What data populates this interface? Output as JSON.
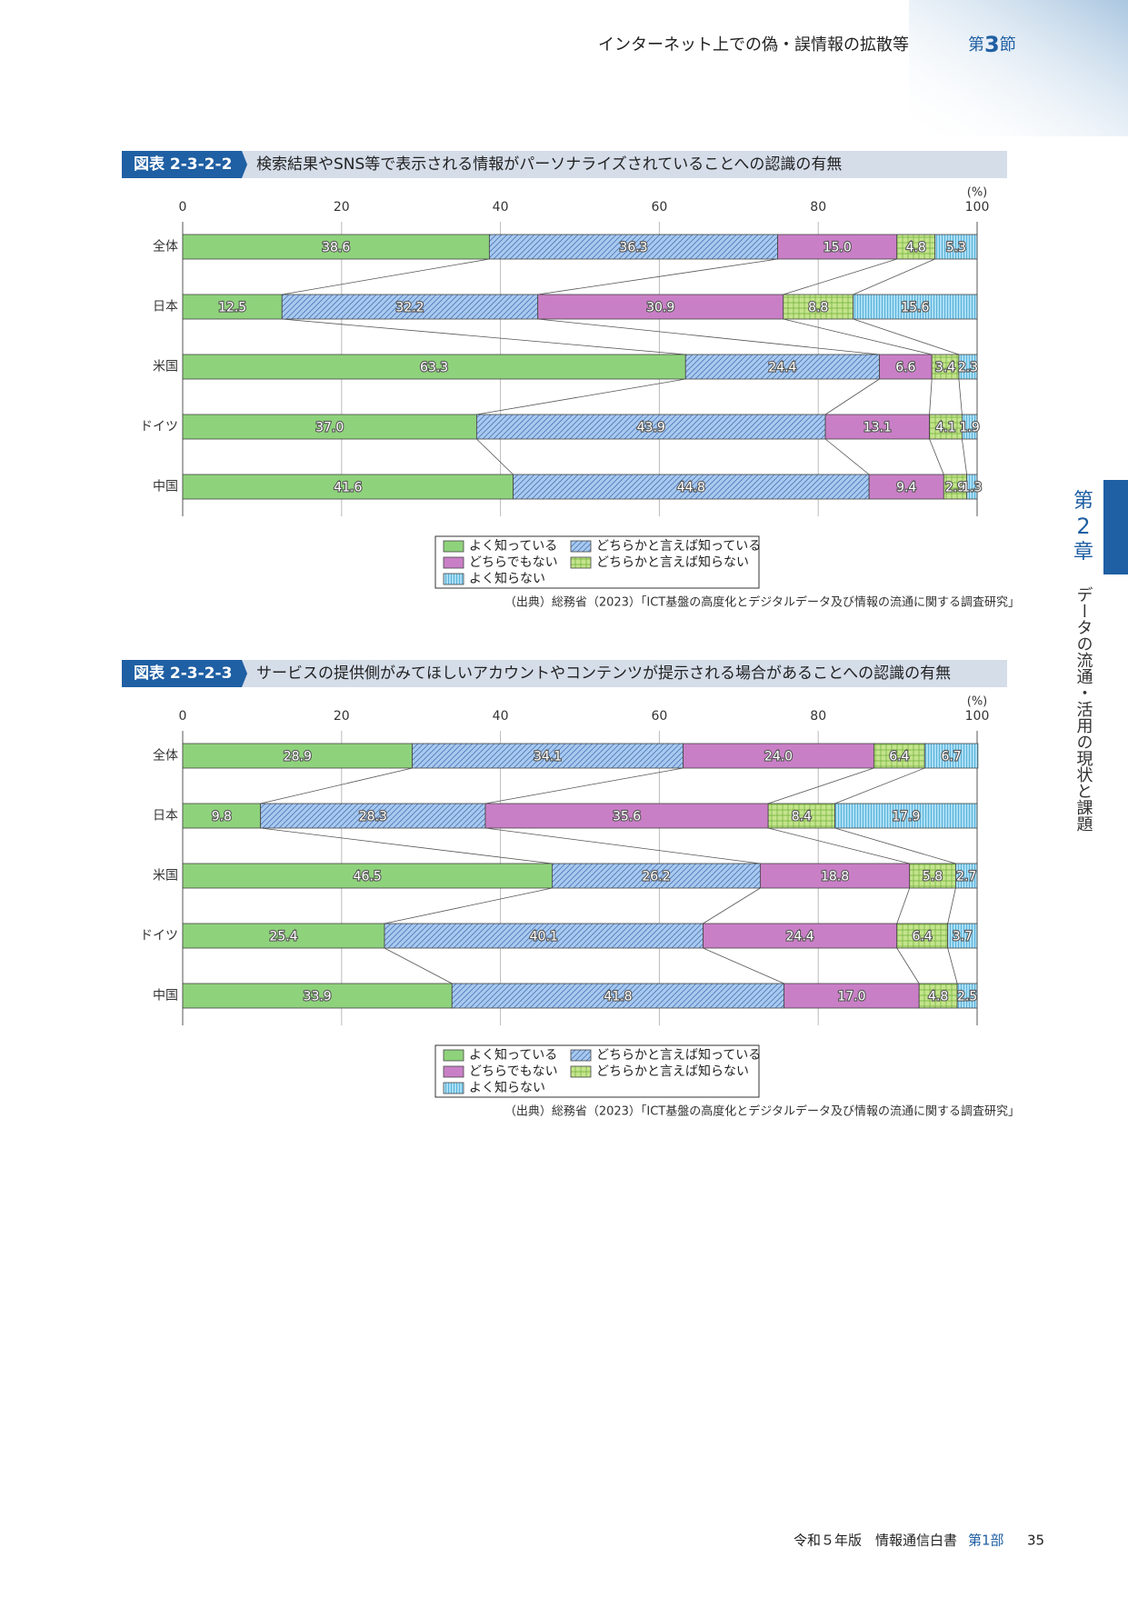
{
  "header": {
    "title": "インターネット上での偽・誤情報の拡散等",
    "section_prefix": "第",
    "section_number": "3",
    "section_suffix": "節"
  },
  "side_tab": {
    "chapter_prefix": "第",
    "chapter_number": "2",
    "chapter_suffix": "章",
    "chapter_title": "データの流通・活用の現状と課題"
  },
  "chart_data": [
    {
      "type": "bar",
      "orientation": "horizontal",
      "stacked": true,
      "figure_label": "図表 2-3-2-2",
      "title": "検索結果やSNS等で表示される情報がパーソナライズされていることへの認識の有無",
      "unit": "(%)",
      "categories": [
        "全体",
        "日本",
        "米国",
        "ドイツ",
        "中国"
      ],
      "xlim": [
        0,
        100
      ],
      "xticks": [
        0,
        20,
        40,
        60,
        80,
        100
      ],
      "grid": true,
      "series": [
        {
          "name": "よく知っている",
          "color": "#8fd27c",
          "pattern": "none",
          "values": [
            38.6,
            12.5,
            63.3,
            37.0,
            41.6
          ],
          "value_labels": [
            "38.6",
            "12.5",
            "63.3",
            "37.0",
            "41.6"
          ]
        },
        {
          "name": "どちらかと言えば知っている",
          "color": "#a9c9ef",
          "pattern": "diagonal",
          "values": [
            36.3,
            32.2,
            24.4,
            43.9,
            44.8
          ],
          "value_labels": [
            "36.3",
            "32.2",
            "24.4",
            "43.9",
            "44.8"
          ]
        },
        {
          "name": "どちらでもない",
          "color": "#c97fc6",
          "pattern": "none",
          "values": [
            15.0,
            30.9,
            6.6,
            13.1,
            9.4
          ],
          "value_labels": [
            "15.0",
            "30.9",
            "6.6",
            "13.1",
            "9.4"
          ]
        },
        {
          "name": "どちらかと言えば知らない",
          "color": "#c4e48c",
          "pattern": "grid",
          "values": [
            4.8,
            8.8,
            3.4,
            4.1,
            2.9
          ],
          "value_labels": [
            "4.8",
            "8.8",
            "3.4",
            "4.1",
            "2.9"
          ]
        },
        {
          "name": "よく知らない",
          "color": "#a9def4",
          "pattern": "vertical",
          "values": [
            5.3,
            15.6,
            2.3,
            1.9,
            1.3
          ],
          "value_labels": [
            "5.3",
            "15.6",
            "2.3",
            "1.9",
            "1.3"
          ]
        }
      ],
      "source": "（出典）総務省（2023）「ICT基盤の高度化とデジタルデータ及び情報の流通に関する調査研究」"
    },
    {
      "type": "bar",
      "orientation": "horizontal",
      "stacked": true,
      "figure_label": "図表 2-3-2-3",
      "title": "サービスの提供側がみてほしいアカウントやコンテンツが提示される場合があることへの認識の有無",
      "unit": "(%)",
      "categories": [
        "全体",
        "日本",
        "米国",
        "ドイツ",
        "中国"
      ],
      "xlim": [
        0,
        100
      ],
      "xticks": [
        0,
        20,
        40,
        60,
        80,
        100
      ],
      "grid": true,
      "series": [
        {
          "name": "よく知っている",
          "color": "#8fd27c",
          "pattern": "none",
          "values": [
            28.9,
            9.8,
            46.5,
            25.4,
            33.9
          ],
          "value_labels": [
            "28.9",
            "9.8",
            "46.5",
            "25.4",
            "33.9"
          ]
        },
        {
          "name": "どちらかと言えば知っている",
          "color": "#a9c9ef",
          "pattern": "diagonal",
          "values": [
            34.1,
            28.3,
            26.2,
            40.1,
            41.8
          ],
          "value_labels": [
            "34.1",
            "28.3",
            "26.2",
            "40.1",
            "41.8"
          ]
        },
        {
          "name": "どちらでもない",
          "color": "#c97fc6",
          "pattern": "none",
          "values": [
            24.0,
            35.6,
            18.8,
            24.4,
            17.0
          ],
          "value_labels": [
            "24.0",
            "35.6",
            "18.8",
            "24.4",
            "17.0"
          ]
        },
        {
          "name": "どちらかと言えば知らない",
          "color": "#c4e48c",
          "pattern": "grid",
          "values": [
            6.4,
            8.4,
            5.8,
            6.4,
            4.8
          ],
          "value_labels": [
            "6.4",
            "8.4",
            "5.8",
            "6.4",
            "4.8"
          ]
        },
        {
          "name": "よく知らない",
          "color": "#a9def4",
          "pattern": "vertical",
          "values": [
            6.7,
            17.9,
            2.7,
            3.7,
            2.5
          ],
          "value_labels": [
            "6.7",
            "17.9",
            "2.7",
            "3.7",
            "2.5"
          ]
        }
      ],
      "source": "（出典）総務省（2023）「ICT基盤の高度化とデジタルデータ及び情報の流通に関する調査研究」"
    }
  ],
  "footer": {
    "publication": "令和５年版　情報通信白書",
    "part": "第1部",
    "page": "35"
  }
}
